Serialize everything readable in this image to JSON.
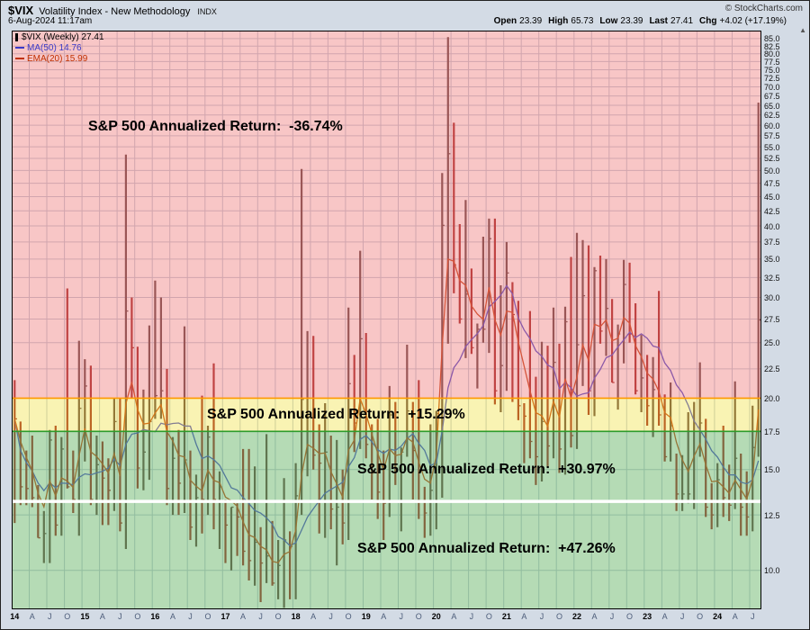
{
  "header": {
    "symbol": "$VIX",
    "title": "Volatility Index - New Methodology",
    "exchange": "INDX",
    "copyright": "© StockCharts.com",
    "datetime": "6-Aug-2024 11:17am",
    "quote": {
      "open_label": "Open",
      "open": "23.39",
      "high_label": "High",
      "high": "65.73",
      "low_label": "Low",
      "low": "23.39",
      "last_label": "Last",
      "last": "27.41",
      "chg_label": "Chg",
      "chg": "+4.02 (+17.19%)"
    }
  },
  "chart_data": {
    "type": "bar",
    "subtype": "weekly hi-lo price bars with MA/EMA overlays and shaded return zones",
    "title": "$VIX Volatility Index - New Methodology (Weekly)",
    "xlabel": "",
    "ylabel": "",
    "y_scale": "log",
    "ylim": [
      8.55,
      87.8
    ],
    "x_start": "2014-01",
    "x_end": "2024-08",
    "legend_main": "$VIX (Weekly) 27.41",
    "overlays": {
      "ma": {
        "label": "MA(50) 14.76",
        "period": 50,
        "last": 14.76,
        "color": "#3a3ac8"
      },
      "ema": {
        "label": "EMA(20) 15.99",
        "period": 20,
        "last": 15.99,
        "color": "#c03000"
      }
    },
    "y_ticks": [
      85.0,
      82.5,
      80.0,
      77.5,
      75.0,
      72.5,
      70.0,
      67.5,
      65.0,
      62.5,
      60.0,
      57.5,
      55.0,
      52.5,
      50.0,
      47.5,
      45.0,
      42.5,
      40.0,
      37.5,
      35.0,
      32.5,
      30.0,
      27.5,
      25.0,
      22.5,
      20.0,
      17.5,
      15.0,
      12.5,
      10.0
    ],
    "x_ticks": [
      "14",
      "A",
      "J",
      "O",
      "15",
      "A",
      "J",
      "O",
      "16",
      "A",
      "J",
      "O",
      "17",
      "A",
      "J",
      "O",
      "18",
      "A",
      "J",
      "O",
      "19",
      "A",
      "J",
      "O",
      "20",
      "A",
      "J",
      "O",
      "21",
      "A",
      "J",
      "O",
      "22",
      "A",
      "J",
      "O",
      "23",
      "A",
      "J",
      "O",
      "24",
      "A",
      "J"
    ],
    "high": [
      21.5,
      18.2,
      16.2,
      17.2,
      14.1,
      12.7,
      17.6,
      17.9,
      17.1,
      31.1,
      16.2,
      25.2,
      23.4,
      22.8,
      17.2,
      16.8,
      15.7,
      20.0,
      20.0,
      53.3,
      30.0,
      24.6,
      20.7,
      26.8,
      32.1,
      30.0,
      22.5,
      17.1,
      17.6,
      26.7,
      16.2,
      14.7,
      20.2,
      17.9,
      23.0,
      14.9,
      13.3,
      12.9,
      13.1,
      16.3,
      16.3,
      15.2,
      11.9,
      17.3,
      12.2,
      11.3,
      14.5,
      11.7,
      15.4,
      50.3,
      26.2,
      25.7,
      18.0,
      19.6,
      17.2,
      16.9,
      15.0,
      28.8,
      23.8,
      36.2,
      26.0,
      18.0,
      18.4,
      16.2,
      21.0,
      19.7,
      16.4,
      24.8,
      19.7,
      21.5,
      14.0,
      18.0,
      19.0,
      49.5,
      85.5,
      60.6,
      40.3,
      44.4,
      33.7,
      27.0,
      38.3,
      41.2,
      41.2,
      31.5,
      37.5,
      31.9,
      29.6,
      19.6,
      28.4,
      21.8,
      25.1,
      24.7,
      28.8,
      24.9,
      28.9,
      35.3,
      38.9,
      37.8,
      37.0,
      33.9,
      35.5,
      35.0,
      29.8,
      26.9,
      34.9,
      34.5,
      29.3,
      25.8,
      23.8,
      23.6,
      30.8,
      20.3,
      21.3,
      16.0,
      15.9,
      18.9,
      19.7,
      23.1,
      18.4,
      14.2,
      15.4,
      17.9,
      15.3,
      21.4,
      16.0,
      14.9,
      19.4,
      65.7
    ],
    "low": [
      12.1,
      13.0,
      13.0,
      12.9,
      11.4,
      10.3,
      10.3,
      11.5,
      11.5,
      13.9,
      12.6,
      11.5,
      15.5,
      13.0,
      12.5,
      12.0,
      12.0,
      12.7,
      11.7,
      10.9,
      20.0,
      13.9,
      13.8,
      14.4,
      18.4,
      18.4,
      13.0,
      12.5,
      12.5,
      12.6,
      11.3,
      11.0,
      11.6,
      12.5,
      11.8,
      10.9,
      10.3,
      10.0,
      10.6,
      10.2,
      9.6,
      9.4,
      8.8,
      9.5,
      9.4,
      8.9,
      8.6,
      8.9,
      8.9,
      12.5,
      14.6,
      15.0,
      11.6,
      11.4,
      11.8,
      10.2,
      11.1,
      11.3,
      16.1,
      16.3,
      15.7,
      13.3,
      12.3,
      11.3,
      12.4,
      14.1,
      11.7,
      15.8,
      13.3,
      12.3,
      11.4,
      11.5,
      11.8,
      13.4,
      24.9,
      30.5,
      27.0,
      23.5,
      23.9,
      20.8,
      25.0,
      24.0,
      19.5,
      18.9,
      20.6,
      19.7,
      18.3,
      15.4,
      15.7,
      14.1,
      14.3,
      15.2,
      15.7,
      14.8,
      14.7,
      16.4,
      16.3,
      21.0,
      18.7,
      18.6,
      24.9,
      23.7,
      21.3,
      19.1,
      23.0,
      25.0,
      20.3,
      18.9,
      17.9,
      17.1,
      17.9,
      15.5,
      15.5,
      12.7,
      12.7,
      13.1,
      12.8,
      15.8,
      12.4,
      11.8,
      11.9,
      12.4,
      12.2,
      12.8,
      11.5,
      11.5,
      11.7,
      15.8
    ],
    "close": [
      18.4,
      14.0,
      13.9,
      13.4,
      11.4,
      11.6,
      16.9,
      12.0,
      16.3,
      14.0,
      13.3,
      19.2,
      21.0,
      13.3,
      15.3,
      14.5,
      13.8,
      18.2,
      12.1,
      28.4,
      24.5,
      15.1,
      16.1,
      18.2,
      20.2,
      20.6,
      13.9,
      15.7,
      14.2,
      15.6,
      11.9,
      13.4,
      13.3,
      17.1,
      13.3,
      14.0,
      12.0,
      12.9,
      12.4,
      10.8,
      10.4,
      11.2,
      10.3,
      10.6,
      9.5,
      10.2,
      11.3,
      11.0,
      13.5,
      19.9,
      20.0,
      15.9,
      15.4,
      16.1,
      12.8,
      12.9,
      12.1,
      21.2,
      18.1,
      25.4,
      16.6,
      14.8,
      13.7,
      13.1,
      18.7,
      15.1,
      16.1,
      19.0,
      16.2,
      13.2,
      12.6,
      13.8,
      18.8,
      40.1,
      53.5,
      34.2,
      27.5,
      30.4,
      24.5,
      26.4,
      26.4,
      38.0,
      20.6,
      22.8,
      33.1,
      28.0,
      19.4,
      18.6,
      16.8,
      15.8,
      18.2,
      16.5,
      23.1,
      16.3,
      27.2,
      17.2,
      24.8,
      30.2,
      20.6,
      33.4,
      26.2,
      28.7,
      21.3,
      25.9,
      31.6,
      25.9,
      20.6,
      21.7,
      19.4,
      20.7,
      18.7,
      15.8,
      17.9,
      13.6,
      13.6,
      13.6,
      17.5,
      18.1,
      12.9,
      12.5,
      14.4,
      13.4,
      13.0,
      15.7,
      12.9,
      12.4,
      16.4,
      27.4
    ],
    "bar_colors": {
      "down": "#991111",
      "up": "#553333"
    },
    "zones": [
      {
        "min": 20.0,
        "max": 87.8,
        "fill": "#f08080",
        "opacity": 0.45,
        "label": "S&P 500 Annualized Return:  -36.74%"
      },
      {
        "min": 17.5,
        "max": 20.0,
        "fill": "#f0e040",
        "opacity": 0.4,
        "label": "S&P 500 Annualized Return:  +15.29%"
      },
      {
        "min": 13.2,
        "max": 17.5,
        "fill": "#6cb86c",
        "opacity": 0.5,
        "label": "S&P 500 Annualized Return:  +30.97%"
      },
      {
        "min": 8.55,
        "max": 13.2,
        "fill": "#6cb86c",
        "opacity": 0.5,
        "label": "S&P 500 Annualized Return:  +47.26%"
      }
    ],
    "threshold_lines": [
      {
        "value": 20.0,
        "color": "#ff9900",
        "width": 1.6
      },
      {
        "value": 17.5,
        "color": "#2d9b2d",
        "width": 1.6
      },
      {
        "value": 13.2,
        "color": "#ffffff",
        "width": 3.5
      }
    ]
  }
}
